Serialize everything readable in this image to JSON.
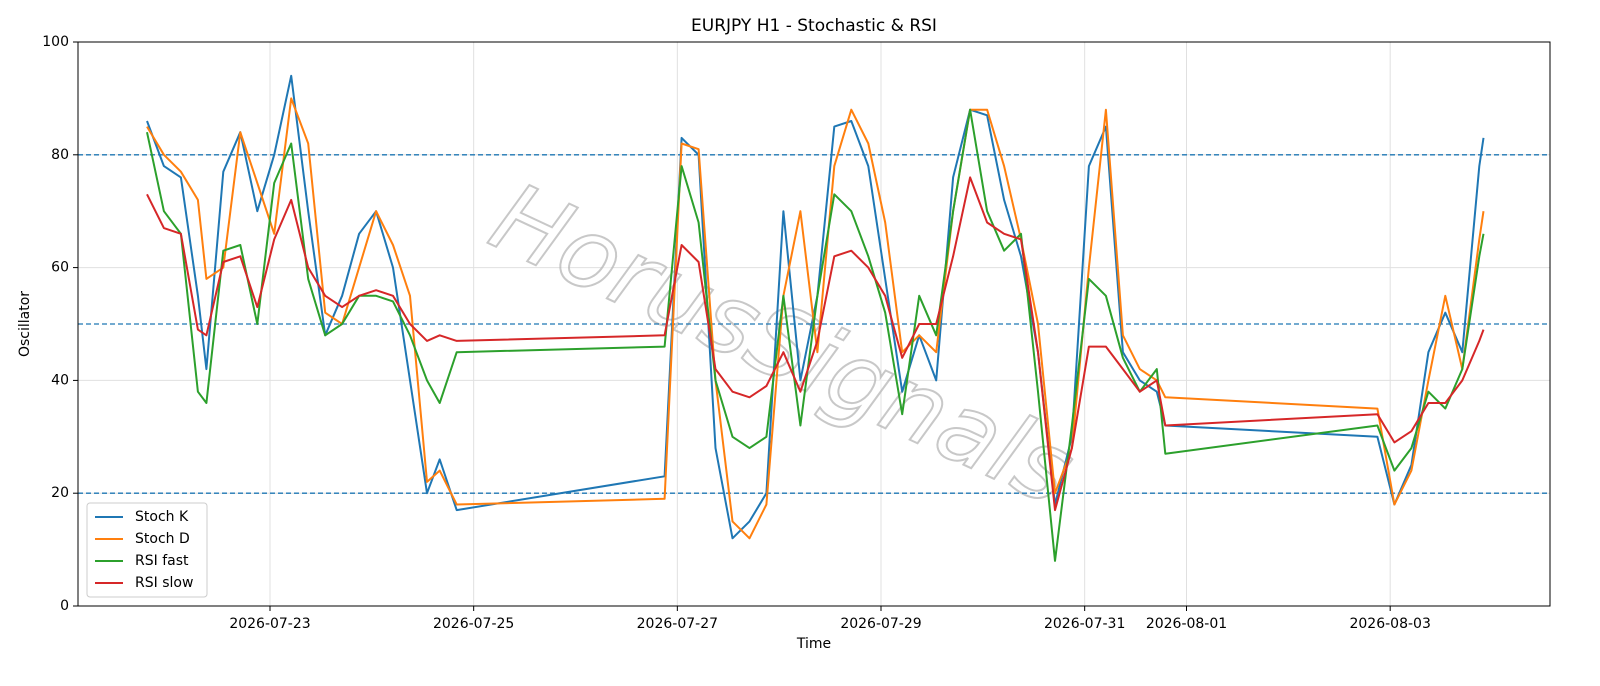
{
  "chart_data": {
    "type": "line",
    "title": "EURJPY H1 - Stochastic & RSI",
    "xlabel": "Time",
    "ylabel": "Oscillator",
    "watermark": "HorusSignals",
    "x": [
      "2026-07-21T19:00",
      "2026-07-21T23:00",
      "2026-07-22T03:00",
      "2026-07-22T07:00",
      "2026-07-22T09:00",
      "2026-07-22T13:00",
      "2026-07-22T17:00",
      "2026-07-22T21:00",
      "2026-07-23T01:00",
      "2026-07-23T05:00",
      "2026-07-23T09:00",
      "2026-07-23T13:00",
      "2026-07-23T17:00",
      "2026-07-23T21:00",
      "2026-07-24T01:00",
      "2026-07-24T05:00",
      "2026-07-24T09:00",
      "2026-07-24T13:00",
      "2026-07-24T16:00",
      "2026-07-24T20:00",
      "2026-07-26T21:00",
      "2026-07-27T01:00",
      "2026-07-27T05:00",
      "2026-07-27T09:00",
      "2026-07-27T13:00",
      "2026-07-27T17:00",
      "2026-07-27T21:00",
      "2026-07-28T01:00",
      "2026-07-28T05:00",
      "2026-07-28T09:00",
      "2026-07-28T13:00",
      "2026-07-28T17:00",
      "2026-07-28T21:00",
      "2026-07-29T01:00",
      "2026-07-29T05:00",
      "2026-07-29T09:00",
      "2026-07-29T13:00",
      "2026-07-29T17:00",
      "2026-07-29T21:00",
      "2026-07-30T01:00",
      "2026-07-30T05:00",
      "2026-07-30T09:00",
      "2026-07-30T13:00",
      "2026-07-30T17:00",
      "2026-07-30T21:00",
      "2026-07-31T01:00",
      "2026-07-31T05:00",
      "2026-07-31T09:00",
      "2026-07-31T13:00",
      "2026-07-31T17:00",
      "2026-07-31T19:00",
      "2026-08-02T21:00",
      "2026-08-03T01:00",
      "2026-08-03T05:00",
      "2026-08-03T09:00",
      "2026-08-03T13:00",
      "2026-08-03T17:00",
      "2026-08-03T21:00",
      "2026-08-03T22:00"
    ],
    "series": [
      {
        "name": "Stoch K",
        "color": "#1f77b4",
        "values": [
          86,
          78,
          76,
          55,
          42,
          77,
          84,
          70,
          80,
          94,
          70,
          48,
          55,
          66,
          70,
          60,
          40,
          20,
          26,
          17,
          23,
          83,
          80,
          28,
          12,
          15,
          20,
          70,
          40,
          55,
          85,
          86,
          78,
          58,
          38,
          48,
          40,
          76,
          88,
          87,
          72,
          62,
          45,
          18,
          30,
          78,
          85,
          45,
          40,
          38,
          32,
          30,
          18,
          25,
          45,
          52,
          45,
          78,
          83
        ]
      },
      {
        "name": "Stoch D",
        "color": "#ff7f0e",
        "values": [
          85,
          80,
          77,
          72,
          58,
          60,
          84,
          75,
          66,
          90,
          82,
          52,
          50,
          60,
          70,
          64,
          55,
          22,
          24,
          18,
          19,
          82,
          81,
          40,
          15,
          12,
          18,
          55,
          70,
          45,
          78,
          88,
          82,
          68,
          45,
          48,
          45,
          70,
          88,
          88,
          78,
          65,
          50,
          20,
          28,
          60,
          88,
          48,
          42,
          40,
          37,
          35,
          18,
          24,
          40,
          55,
          42,
          65,
          70
        ]
      },
      {
        "name": "RSI fast",
        "color": "#2ca02c",
        "values": [
          84,
          70,
          66,
          38,
          36,
          63,
          64,
          50,
          75,
          82,
          58,
          48,
          50,
          55,
          55,
          54,
          48,
          40,
          36,
          45,
          46,
          78,
          68,
          40,
          30,
          28,
          30,
          55,
          32,
          55,
          73,
          70,
          62,
          52,
          34,
          55,
          48,
          70,
          88,
          70,
          63,
          66,
          38,
          8,
          32,
          58,
          55,
          44,
          38,
          42,
          27,
          32,
          24,
          28,
          38,
          35,
          42,
          62,
          66
        ]
      },
      {
        "name": "RSI slow",
        "color": "#d62728",
        "values": [
          73,
          67,
          66,
          49,
          48,
          61,
          62,
          53,
          65,
          72,
          60,
          55,
          53,
          55,
          56,
          55,
          50,
          47,
          48,
          47,
          48,
          64,
          61,
          42,
          38,
          37,
          39,
          45,
          38,
          47,
          62,
          63,
          60,
          55,
          44,
          50,
          50,
          62,
          76,
          68,
          66,
          65,
          45,
          17,
          28,
          46,
          46,
          42,
          38,
          40,
          32,
          34,
          29,
          31,
          36,
          36,
          40,
          47,
          49
        ]
      }
    ],
    "xlim": [
      "2026-07-21T02:45",
      "2026-08-04T13:40"
    ],
    "xticks": [
      "2026-07-23",
      "2026-07-25",
      "2026-07-27",
      "2026-07-29",
      "2026-07-31",
      "2026-08-01",
      "2026-08-03"
    ],
    "ylim": [
      0,
      100
    ],
    "yticks": [
      0,
      20,
      40,
      60,
      80,
      100
    ],
    "hlines": [
      20,
      50,
      80
    ],
    "hline_color": "#1f77b4",
    "grid": true,
    "legend": "lower left"
  }
}
